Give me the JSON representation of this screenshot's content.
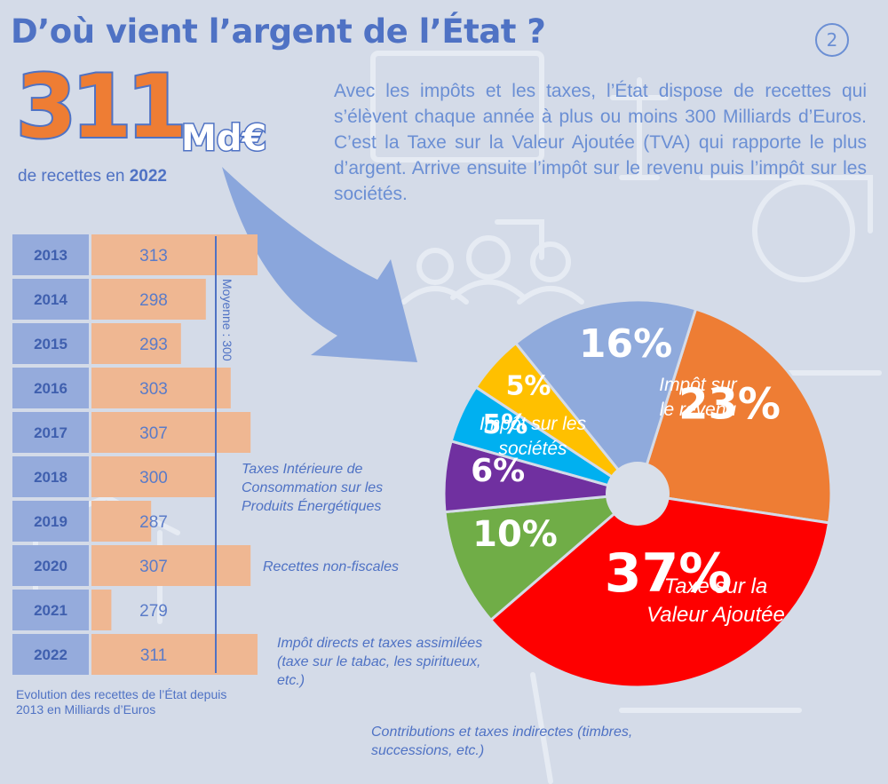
{
  "header": {
    "title": "D’où vient l’argent de l’État ?",
    "page_number": "2"
  },
  "headline": {
    "value": "311",
    "unit": "Md€",
    "subtitle_prefix": "de recettes en",
    "subtitle_year": "2022"
  },
  "intro_text": "Avec les impôts et les taxes, l’État dispose de recettes qui s’élèvent chaque année à plus ou moins 300 Milliards d’Euros. C’est la Taxe sur la Valeur Ajoutée (TVA) qui rapporte le plus d’argent. Arrive ensuite l’impôt sur le revenu puis l’impôt sur les sociétés.",
  "colors": {
    "title_blue": "#4f72c4",
    "text_blue": "#6b8fd4",
    "orange": "#ee7d34",
    "bar_fill": "#efb792",
    "year_cell": "#95abdc"
  },
  "chart_data": [
    {
      "type": "bar",
      "orientation": "horizontal",
      "categories": [
        "2013",
        "2014",
        "2015",
        "2016",
        "2017",
        "2018",
        "2019",
        "2020",
        "2021",
        "2022"
      ],
      "values": [
        313,
        298,
        293,
        303,
        307,
        300,
        287,
        307,
        279,
        311
      ],
      "average_label": "Moyenne : 300",
      "average_value": 300,
      "caption": "Evolution des recettes de l’État depuis 2013 en Milliards d’Euros"
    },
    {
      "type": "pie",
      "donut": true,
      "slices": [
        {
          "pct_label": "23%",
          "value": 23,
          "label": "Impôt sur le revenu",
          "color": "#ee7d34"
        },
        {
          "pct_label": "37%",
          "value": 37,
          "label": "Taxe sur la Valeur Ajoutée",
          "color": "#fe0000"
        },
        {
          "pct_label": "10%",
          "value": 10,
          "label": "Contributions et taxes indirectes (timbres, successions, etc.)",
          "color": "#70ad47"
        },
        {
          "pct_label": "6%",
          "value": 6,
          "label": "Impôt directs et taxes assimilées (taxe sur le tabac, les spiritueux, etc.)",
          "color": "#7030a0"
        },
        {
          "pct_label": "5%",
          "value": 5,
          "label": "Recettes non-fiscales",
          "color": "#00b0f0"
        },
        {
          "pct_label": "5%",
          "value": 5,
          "label": "Taxes Intérieure de Consommation sur les Produits Énergétiques",
          "color": "#ffc000"
        },
        {
          "pct_label": "16%",
          "value": 16,
          "label": "Impôt sur les sociétés",
          "color": "#8faadc"
        }
      ]
    }
  ]
}
